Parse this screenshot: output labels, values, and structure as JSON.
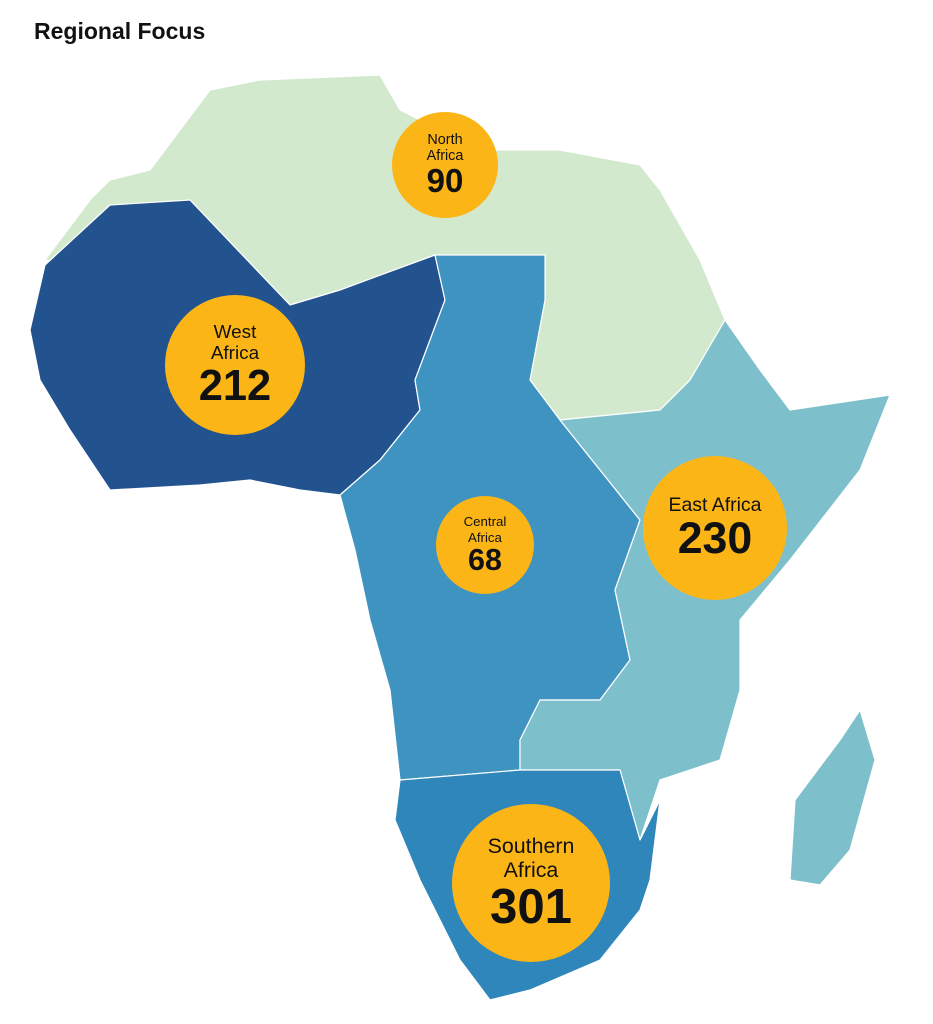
{
  "title": "Regional Focus",
  "bubble_color": "#fbb517",
  "regions": [
    {
      "name": "North Africa",
      "value": 90,
      "color": "#d2e9cd"
    },
    {
      "name": "West Africa",
      "value": 212,
      "color": "#22538f"
    },
    {
      "name": "Central Africa",
      "value": 68,
      "color": "#3f93c0"
    },
    {
      "name": "East Africa",
      "value": 230,
      "color": "#7dc0cb"
    },
    {
      "name": "Southern Africa",
      "value": 301,
      "color": "#2f86bb"
    }
  ]
}
